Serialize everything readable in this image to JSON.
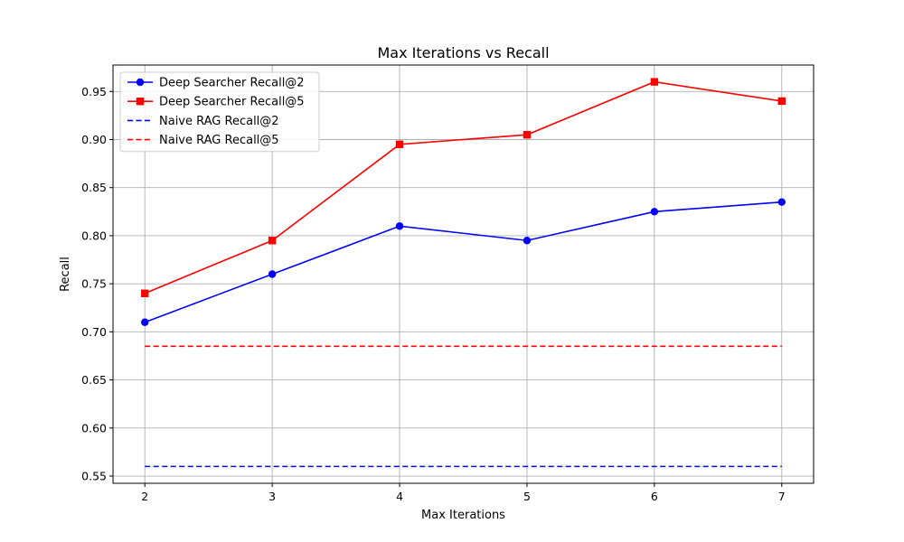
{
  "chart_data": {
    "type": "line",
    "title": "Max Iterations vs Recall",
    "xlabel": "Max Iterations",
    "ylabel": "Recall",
    "x": [
      2,
      3,
      4,
      5,
      6,
      7
    ],
    "xlim": [
      1.75,
      7.25
    ],
    "ylim": [
      0.5425,
      0.9775
    ],
    "x_ticks": [
      "2",
      "3",
      "4",
      "5",
      "6",
      "7"
    ],
    "y_ticks": [
      "0.55",
      "0.60",
      "0.65",
      "0.70",
      "0.75",
      "0.80",
      "0.85",
      "0.90",
      "0.95"
    ],
    "grid": true,
    "legend_position": "top-left",
    "series": [
      {
        "name": "Deep Searcher Recall@2",
        "values": [
          0.71,
          0.76,
          0.81,
          0.795,
          0.825,
          0.835
        ],
        "color": "#0000ff",
        "style": "solid",
        "marker": "circle"
      },
      {
        "name": "Deep Searcher Recall@5",
        "values": [
          0.74,
          0.795,
          0.895,
          0.905,
          0.96,
          0.94
        ],
        "color": "#ff0000",
        "style": "solid",
        "marker": "square"
      },
      {
        "name": "Naive RAG Recall@2",
        "values": [
          0.56,
          0.56,
          0.56,
          0.56,
          0.56,
          0.56
        ],
        "color": "#0000ff",
        "style": "dashed",
        "marker": "none"
      },
      {
        "name": "Naive RAG Recall@5",
        "values": [
          0.685,
          0.685,
          0.685,
          0.685,
          0.685,
          0.685
        ],
        "color": "#ff0000",
        "style": "dashed",
        "marker": "none"
      }
    ]
  }
}
